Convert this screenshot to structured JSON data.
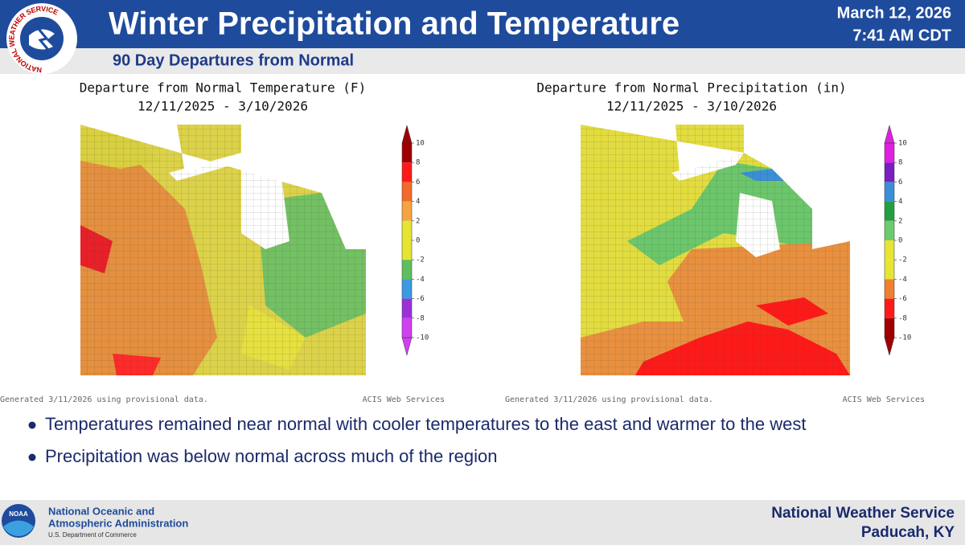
{
  "header": {
    "title": "Winter Precipitation and Temperature",
    "subtitle": "90 Day Departures from Normal",
    "date": "March 12, 2026",
    "time": "7:41 AM CDT",
    "logo_text": "NATIONAL WEATHER SERVICE"
  },
  "maps": [
    {
      "title": "Departure from Normal Temperature (F)",
      "period": "12/11/2025 - 3/10/2026",
      "legend": {
        "ticks": [
          10,
          8,
          6,
          4,
          2,
          0,
          -2,
          -4,
          -6,
          -8,
          -10
        ],
        "colors": [
          "#a00000",
          "#ff1a1a",
          "#f26b2a",
          "#f5a441",
          "#e6e632",
          "#e6e632",
          "#5fbf5f",
          "#3b9be0",
          "#9b30d9",
          "#d040f0"
        ]
      },
      "note": "Generated 3/11/2026 using provisional data.",
      "source": "ACIS Web Services"
    },
    {
      "title": "Departure from Normal Precipitation (in)",
      "period": "12/11/2025 - 3/10/2026",
      "legend": {
        "ticks": [
          10,
          8,
          6,
          4,
          2,
          0,
          -2,
          -4,
          -6,
          -8,
          -10
        ],
        "colors": [
          "#e020e0",
          "#7a1fc0",
          "#3a8fd8",
          "#22a040",
          "#6ccc6c",
          "#e6e632",
          "#e6e632",
          "#f08030",
          "#ff1a1a",
          "#a00000"
        ]
      },
      "note": "Generated 3/11/2026 using provisional data.",
      "source": "ACIS Web Services"
    }
  ],
  "bullets": [
    "Temperatures remained near normal with cooler temperatures to the east and warmer to the west",
    "Precipitation was below normal across much of the region"
  ],
  "footer": {
    "logo_text": "NOAA",
    "agency_line1": "National Oceanic and",
    "agency_line2": "Atmospheric Administration",
    "department": "U.S. Department of Commerce",
    "office": "National Weather Service",
    "location": "Paducah, KY"
  }
}
